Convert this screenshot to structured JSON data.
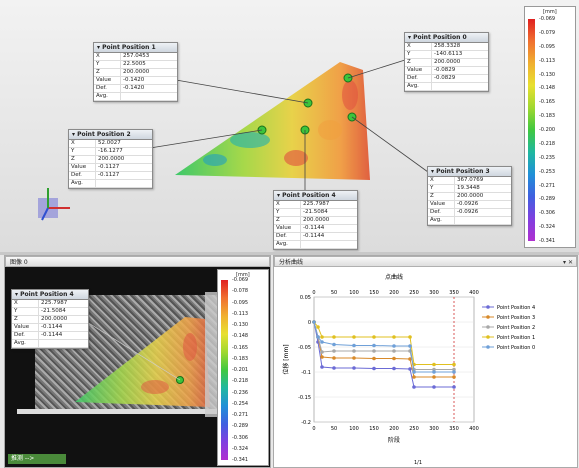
{
  "top_view": {
    "colorbar": {
      "unit": "[mm]",
      "ticks": [
        "-0.069",
        "-0.079",
        "-0.095",
        "-0.113",
        "-0.130",
        "-0.148",
        "-0.165",
        "-0.183",
        "-0.200",
        "-0.218",
        "-0.235",
        "-0.253",
        "-0.271",
        "-0.289",
        "-0.306",
        "-0.324",
        "-0.341"
      ]
    },
    "points": [
      {
        "title": "Point Position 1",
        "rows": [
          [
            "X",
            "257.0453"
          ],
          [
            "Y",
            "22.5005"
          ],
          [
            "Z",
            "200.0000"
          ],
          [
            "Value",
            "-0.1420"
          ],
          [
            "Def.",
            "-0.1420"
          ],
          [
            "Avg.",
            ""
          ]
        ]
      },
      {
        "title": "Point Position 0",
        "rows": [
          [
            "X",
            "258.3328"
          ],
          [
            "Y",
            "-140.6113"
          ],
          [
            "Z",
            "200.0000"
          ],
          [
            "Value",
            "-0.0829"
          ],
          [
            "Def.",
            "-0.0829"
          ],
          [
            "Avg.",
            ""
          ]
        ]
      },
      {
        "title": "Point Position 2",
        "rows": [
          [
            "X",
            "52.0027"
          ],
          [
            "Y",
            "-16.1277"
          ],
          [
            "Z",
            "200.0000"
          ],
          [
            "Value",
            "-0.1127"
          ],
          [
            "Def.",
            "-0.1127"
          ],
          [
            "Avg.",
            ""
          ]
        ]
      },
      {
        "title": "Point Position 3",
        "rows": [
          [
            "X",
            "367.0769"
          ],
          [
            "Y",
            "19.3448"
          ],
          [
            "Z",
            "200.0000"
          ],
          [
            "Value",
            "-0.0926"
          ],
          [
            "Def.",
            "-0.0926"
          ],
          [
            "Avg.",
            ""
          ]
        ]
      },
      {
        "title": "Point Position 4",
        "rows": [
          [
            "X",
            "225.7987"
          ],
          [
            "Y",
            "-21.5084"
          ],
          [
            "Z",
            "200.0000"
          ],
          [
            "Value",
            "-0.1144"
          ],
          [
            "Def.",
            "-0.1144"
          ],
          [
            "Avg.",
            ""
          ]
        ]
      }
    ]
  },
  "image_pane": {
    "title": "图像 0",
    "point_box": {
      "title": "Point Position 4",
      "rows": [
        [
          "X",
          "225.7987"
        ],
        [
          "Y",
          "-21.5084"
        ],
        [
          "Z",
          "200.0000"
        ],
        [
          "Value",
          "-0.1144"
        ],
        [
          "Def.",
          "-0.1144"
        ],
        [
          "Avg.",
          ""
        ]
      ]
    },
    "colorbar": {
      "unit": "[mm]",
      "ticks": [
        "-0.069",
        "-0.078",
        "-0.095",
        "-0.113",
        "-0.130",
        "-0.148",
        "-0.165",
        "-0.183",
        "-0.201",
        "-0.218",
        "-0.236",
        "-0.254",
        "-0.271",
        "-0.289",
        "-0.306",
        "-0.324",
        "-0.341"
      ]
    },
    "status_text": "推测 -->"
  },
  "analysis_pane": {
    "title": "分析曲线",
    "close": "×",
    "pin": "▾ ✕",
    "chart_data": {
      "type": "line",
      "title": "点曲线",
      "xlabel": "阶段",
      "ylabel": "位移 [mm]",
      "xlim": [
        0,
        400
      ],
      "ylim": [
        -0.2,
        0.05
      ],
      "x_ticks": [
        "0",
        "50",
        "100",
        "150",
        "200",
        "250",
        "300",
        "350",
        "400"
      ],
      "x_ticks_top": [
        "0",
        "50",
        "100",
        "150",
        "200",
        "250",
        "300",
        "350",
        "400"
      ],
      "y_ticks": [
        "0.05",
        "0",
        "-0.05",
        "-0.1",
        "-0.15",
        "-0.2"
      ],
      "marker_x": 350,
      "series": [
        {
          "name": "Point Position 4",
          "color": "#6b6bd6",
          "values": [
            [
              0,
              0
            ],
            [
              10,
              -0.04
            ],
            [
              20,
              -0.09
            ],
            [
              50,
              -0.092
            ],
            [
              100,
              -0.092
            ],
            [
              150,
              -0.093
            ],
            [
              200,
              -0.093
            ],
            [
              240,
              -0.094
            ],
            [
              250,
              -0.13
            ],
            [
              300,
              -0.13
            ],
            [
              350,
              -0.13
            ]
          ]
        },
        {
          "name": "Point Position 3",
          "color": "#d88a2a",
          "values": [
            [
              0,
              0
            ],
            [
              10,
              -0.03
            ],
            [
              20,
              -0.07
            ],
            [
              50,
              -0.072
            ],
            [
              100,
              -0.072
            ],
            [
              150,
              -0.073
            ],
            [
              200,
              -0.073
            ],
            [
              240,
              -0.074
            ],
            [
              250,
              -0.11
            ],
            [
              300,
              -0.11
            ],
            [
              350,
              -0.11
            ]
          ]
        },
        {
          "name": "Point Position 2",
          "color": "#a8a8a8",
          "values": [
            [
              0,
              0
            ],
            [
              10,
              -0.03
            ],
            [
              20,
              -0.06
            ],
            [
              50,
              -0.058
            ],
            [
              100,
              -0.058
            ],
            [
              150,
              -0.058
            ],
            [
              200,
              -0.058
            ],
            [
              240,
              -0.058
            ],
            [
              250,
              -0.095
            ],
            [
              300,
              -0.095
            ],
            [
              350,
              -0.095
            ]
          ]
        },
        {
          "name": "Point Position 1",
          "color": "#e0c020",
          "values": [
            [
              0,
              0
            ],
            [
              10,
              -0.01
            ],
            [
              20,
              -0.03
            ],
            [
              50,
              -0.03
            ],
            [
              100,
              -0.03
            ],
            [
              150,
              -0.03
            ],
            [
              200,
              -0.03
            ],
            [
              240,
              -0.03
            ],
            [
              250,
              -0.085
            ],
            [
              300,
              -0.085
            ],
            [
              350,
              -0.085
            ]
          ]
        },
        {
          "name": "Point Position 0",
          "color": "#6fa0d8",
          "values": [
            [
              0,
              0
            ],
            [
              10,
              -0.03
            ],
            [
              20,
              -0.04
            ],
            [
              50,
              -0.045
            ],
            [
              100,
              -0.047
            ],
            [
              150,
              -0.047
            ],
            [
              200,
              -0.048
            ],
            [
              240,
              -0.048
            ],
            [
              250,
              -0.1
            ],
            [
              300,
              -0.1
            ],
            [
              350,
              -0.1
            ]
          ]
        }
      ]
    },
    "status_text": "1/1"
  }
}
